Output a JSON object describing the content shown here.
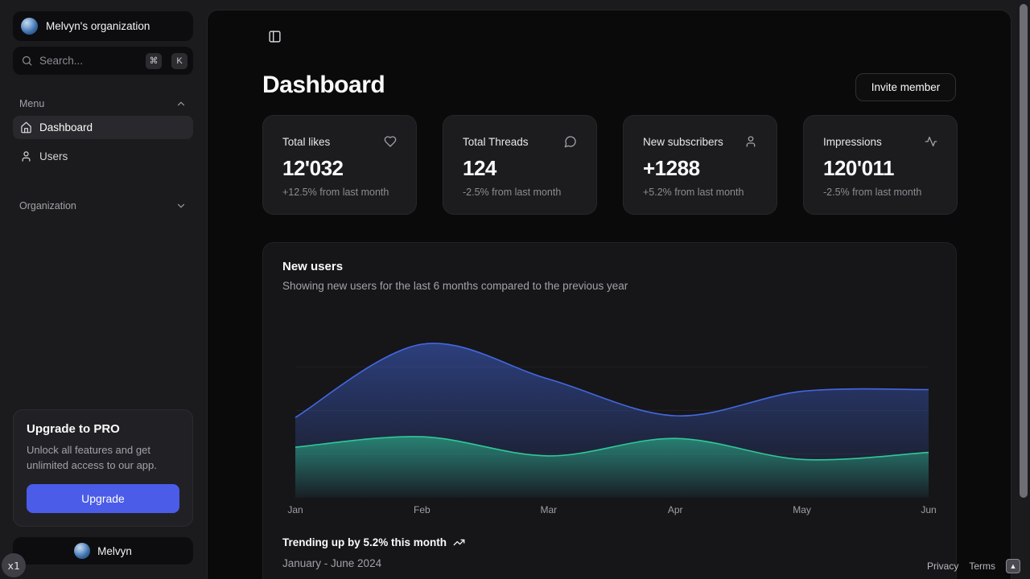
{
  "sidebar": {
    "org_name": "Melvyn's organization",
    "search": {
      "placeholder": "Search...",
      "shortcut_keys": [
        "⌘",
        "K"
      ]
    },
    "groups": [
      {
        "label": "Menu",
        "state": "expanded",
        "items": [
          {
            "label": "Dashboard",
            "icon": "home-icon",
            "active": true
          },
          {
            "label": "Users",
            "icon": "user-icon",
            "active": false
          }
        ]
      },
      {
        "label": "Organization",
        "state": "collapsed",
        "items": []
      }
    ],
    "upgrade_card": {
      "title": "Upgrade to PRO",
      "description": "Unlock all features and get unlimited access to our app.",
      "button_label": "Upgrade",
      "button_color": "#4a5ce8"
    },
    "user_name": "Melvyn"
  },
  "header": {
    "title": "Dashboard",
    "invite_button_label": "Invite member"
  },
  "stats": [
    {
      "label": "Total likes",
      "icon": "heart-icon",
      "value": "12'032",
      "delta": "+12.5% from last month"
    },
    {
      "label": "Total Threads",
      "icon": "message-circle-icon",
      "value": "124",
      "delta": "-2.5% from last month"
    },
    {
      "label": "New subscribers",
      "icon": "user-icon",
      "value": "+1288",
      "delta": "+5.2% from last month"
    },
    {
      "label": "Impressions",
      "icon": "activity-icon",
      "value": "120'011",
      "delta": "-2.5% from last month"
    }
  ],
  "chart_card": {
    "title": "New users",
    "description": "Showing new users for the last 6 months compared to the previous year",
    "footer_trend": "Trending up by 5.2% this month",
    "footer_range": "January - June 2024"
  },
  "chart_data": {
    "type": "area",
    "title": "New users",
    "categories": [
      "Jan",
      "Feb",
      "Mar",
      "Apr",
      "May",
      "Jun"
    ],
    "series": [
      {
        "name": "current-period",
        "color": "#4368e0",
        "values": [
          46,
          88,
          68,
          47,
          61,
          62
        ]
      },
      {
        "name": "previous-year",
        "color": "#2fc998",
        "values": [
          29,
          35,
          24,
          34,
          22,
          26
        ]
      }
    ],
    "ylim": [
      0,
      100
    ],
    "xlabel": "",
    "ylabel": "",
    "grid": "horizontal-faint",
    "legend": "none",
    "smoothing": "natural"
  },
  "footer": {
    "links": [
      "Privacy",
      "Terms"
    ]
  },
  "misc": {
    "x1_badge": "x1"
  }
}
